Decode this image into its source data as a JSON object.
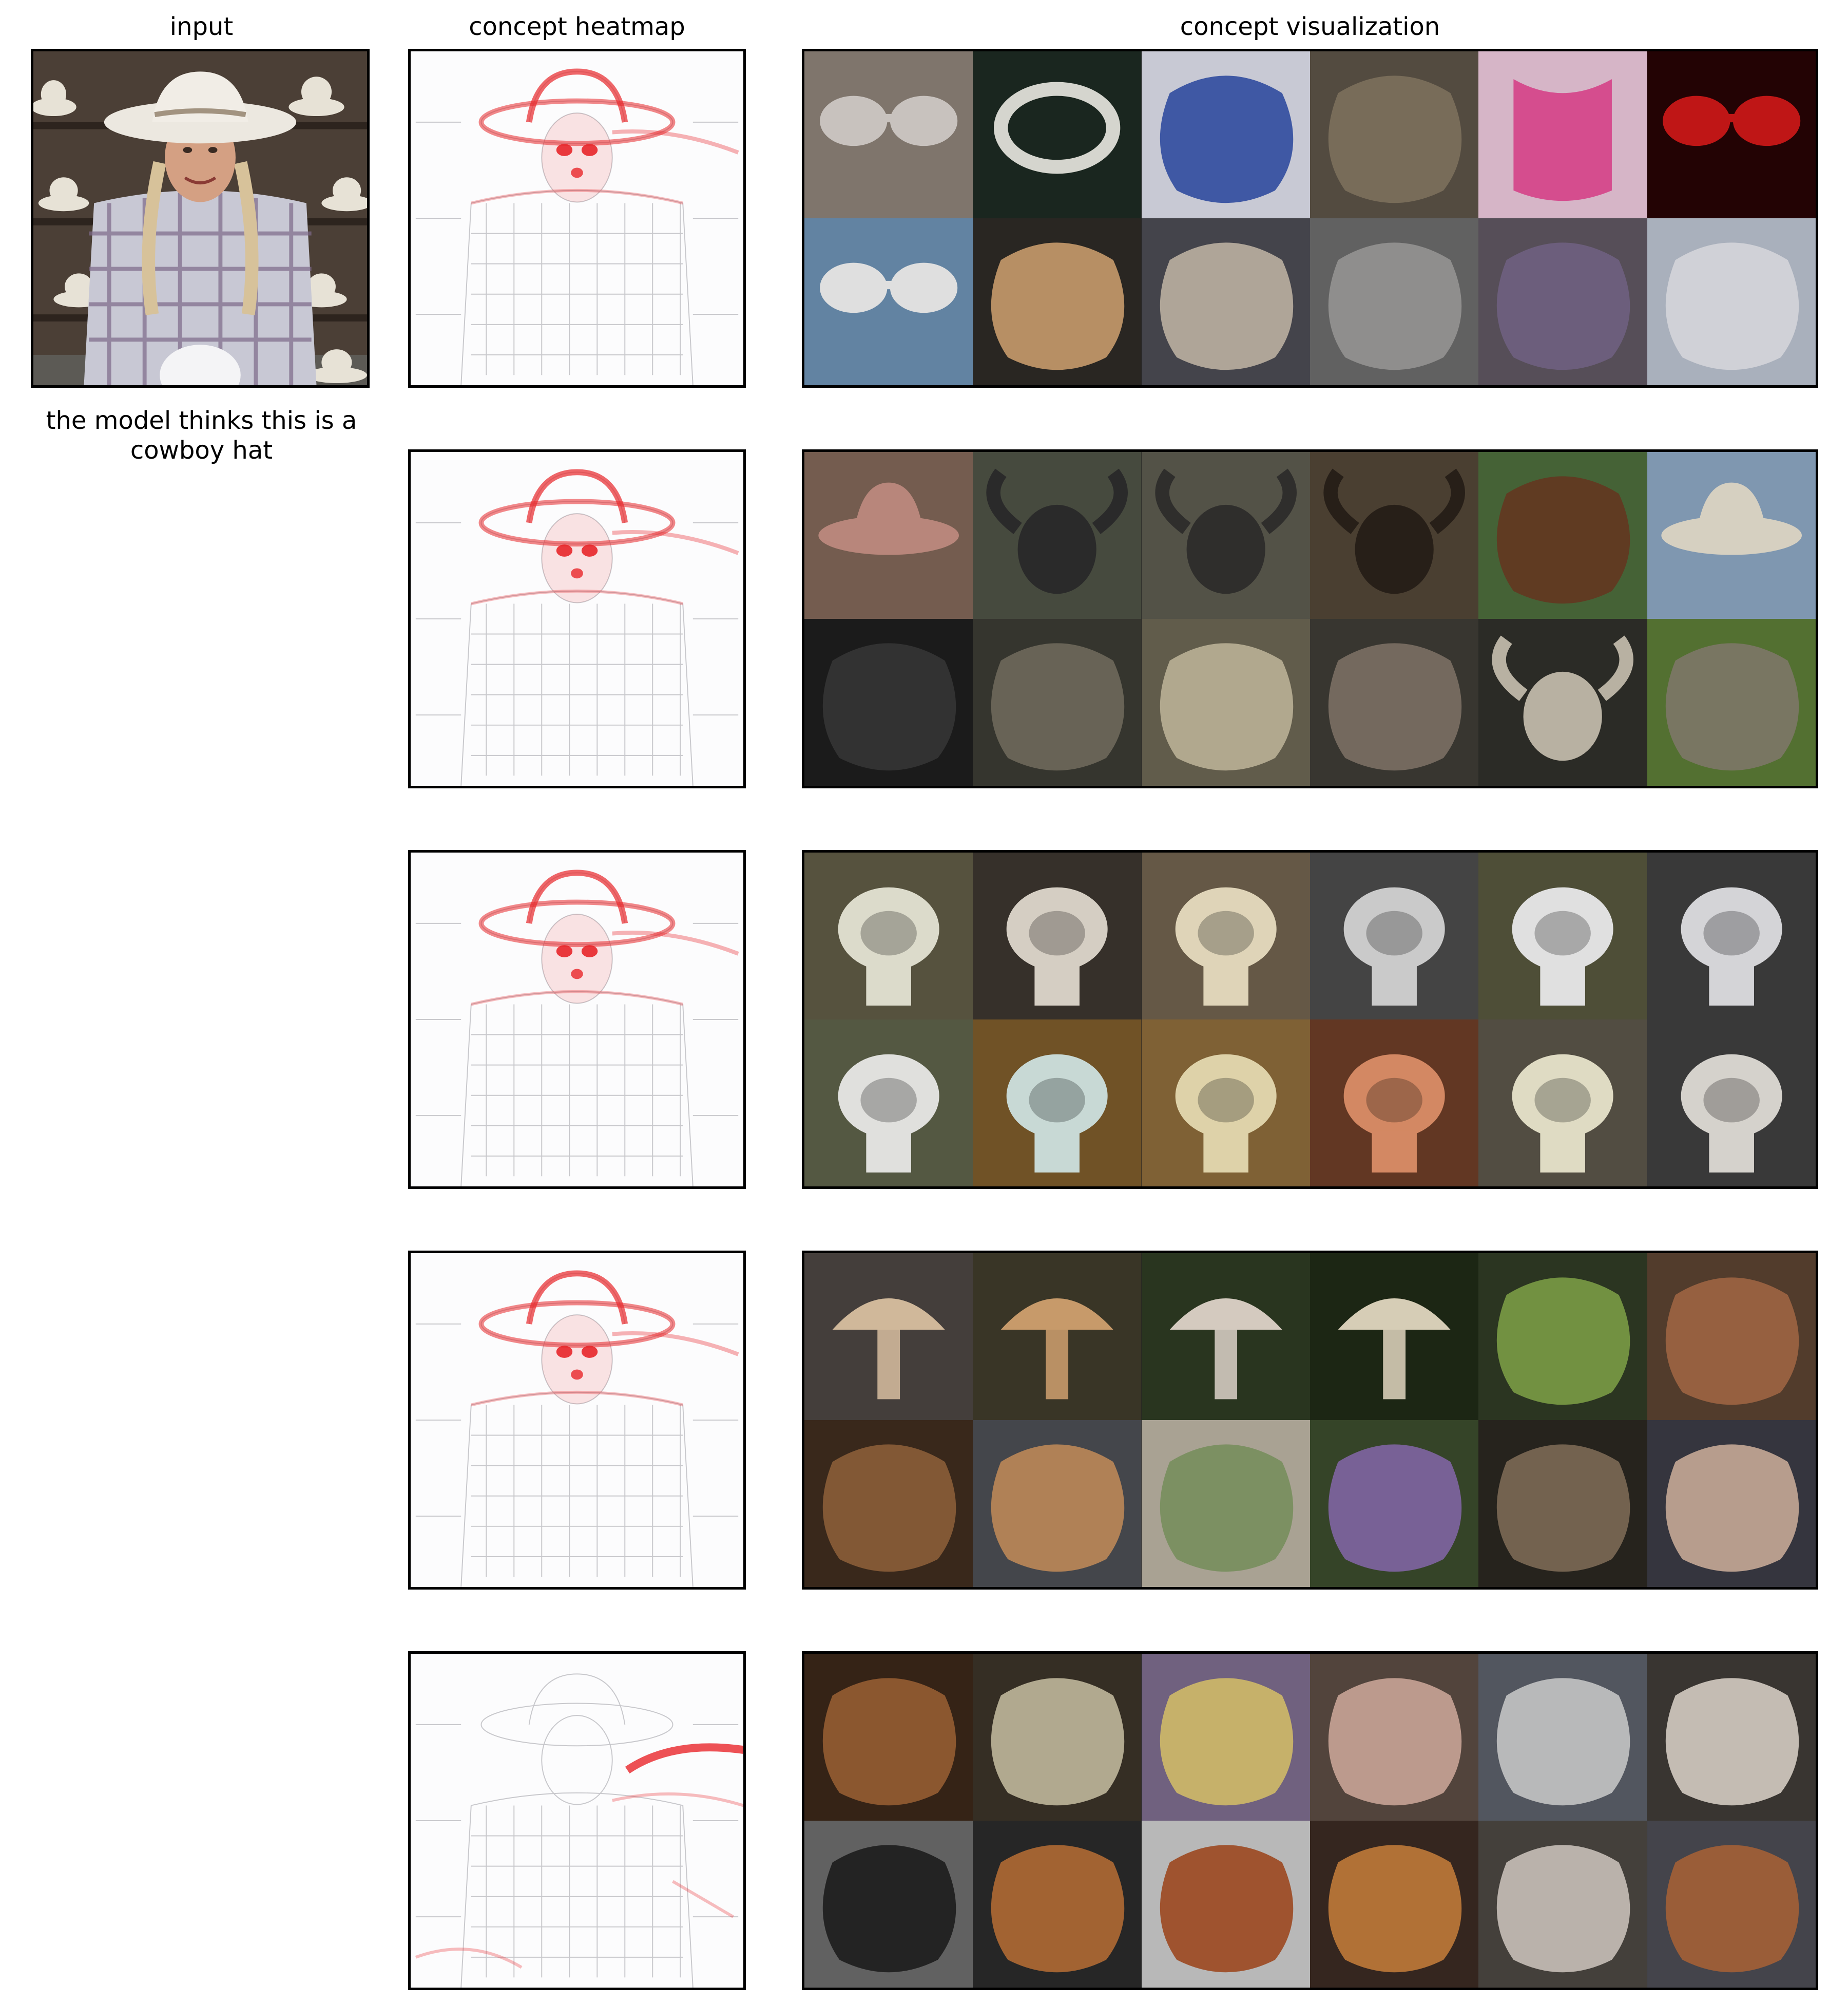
{
  "titles": {
    "input": "input",
    "heatmap": "concept heatmap",
    "visualization": "concept visualization"
  },
  "caption": "the model thinks this is a cowboy hat",
  "rows": [
    {
      "concept_index": 1,
      "heat_focus": "hat-and-face",
      "tiles": [
        {
          "icon": "sunglasses-icon",
          "bg": "#8a7f76",
          "fg": "#d9d3cf",
          "shape": "glasses"
        },
        {
          "icon": "hat-icon",
          "bg": "#1d2a22",
          "fg": "#e8e8e0",
          "shape": "ring"
        },
        {
          "icon": "porcelain-icon",
          "bg": "#d9dbe6",
          "fg": "#2a4aa8",
          "shape": "blob"
        },
        {
          "icon": "rock-icon",
          "bg": "#5b5246",
          "fg": "#8b7c66",
          "shape": "blob"
        },
        {
          "icon": "bib-icon",
          "bg": "#e9c5d8",
          "fg": "#e84090",
          "shape": "bib"
        },
        {
          "icon": "red-goggles-icon",
          "bg": "#260405",
          "fg": "#d01818",
          "shape": "glasses"
        },
        {
          "icon": "child-glasses-icon",
          "bg": "#6b8fb0",
          "fg": "#f2f2f2",
          "shape": "glasses"
        },
        {
          "icon": "pottery-icon",
          "bg": "#2d2a25",
          "fg": "#e3b07a",
          "shape": "blob"
        },
        {
          "icon": "shoes-icon",
          "bg": "#4a4a52",
          "fg": "#d2c6b4",
          "shape": "blob"
        },
        {
          "icon": "bra-icon",
          "bg": "#6a6a6a",
          "fg": "#a5a3a1",
          "shape": "blob"
        },
        {
          "icon": "teapot-icon",
          "bg": "#5e5560",
          "fg": "#7a6b8e",
          "shape": "blob"
        },
        {
          "icon": "plate-icon",
          "bg": "#b8bfcc",
          "fg": "#e9e9ee",
          "shape": "blob"
        }
      ]
    },
    {
      "concept_index": 2,
      "heat_focus": "hat-and-face",
      "tiles": [
        {
          "icon": "sombrero-icon",
          "bg": "#7e6456",
          "fg": "#c89286",
          "shape": "hat"
        },
        {
          "icon": "buffalo-icon",
          "bg": "#4d5144",
          "fg": "#2e2e2e",
          "shape": "horns"
        },
        {
          "icon": "buffalo-icon",
          "bg": "#5b5a4e",
          "fg": "#333230",
          "shape": "horns"
        },
        {
          "icon": "horn-icon",
          "bg": "#514536",
          "fg": "#2b221b",
          "shape": "horns"
        },
        {
          "icon": "cow-icon",
          "bg": "#4b6b3b",
          "fg": "#6e3a22",
          "shape": "blob"
        },
        {
          "icon": "cowboy-hat-icon",
          "bg": "#8aa4bf",
          "fg": "#e9e2d2",
          "shape": "hat"
        },
        {
          "icon": "animal-head-icon",
          "bg": "#1e1e1e",
          "fg": "#3c3c3c",
          "shape": "blob"
        },
        {
          "icon": "elephant-icon",
          "bg": "#3a3a32",
          "fg": "#7b7566",
          "shape": "blob"
        },
        {
          "icon": "elephant-icon",
          "bg": "#6a6452",
          "fg": "#cfc6a8",
          "shape": "blob"
        },
        {
          "icon": "elephant-icon",
          "bg": "#3d3b35",
          "fg": "#8a7c70",
          "shape": "blob"
        },
        {
          "icon": "ram-horn-icon",
          "bg": "#2f2f2a",
          "fg": "#c8c0b0",
          "shape": "horns"
        },
        {
          "icon": "elephant-icon",
          "bg": "#5b7a36",
          "fg": "#8c8174",
          "shape": "blob"
        }
      ]
    },
    {
      "concept_index": 3,
      "heat_focus": "hat-and-face",
      "tiles": [
        {
          "icon": "toilet-icon",
          "bg": "#5e5a44",
          "fg": "#efeedd",
          "shape": "toilet"
        },
        {
          "icon": "toilet-icon",
          "bg": "#3b352e",
          "fg": "#e8e0d4",
          "shape": "toilet"
        },
        {
          "icon": "toilet-icon",
          "bg": "#6e604c",
          "fg": "#f2e7c8",
          "shape": "toilet"
        },
        {
          "icon": "toilet-icon",
          "bg": "#4a4a4a",
          "fg": "#dcdcdc",
          "shape": "toilet"
        },
        {
          "icon": "toilet-icon",
          "bg": "#55553c",
          "fg": "#f4f4f4",
          "shape": "toilet"
        },
        {
          "icon": "toilet-icon",
          "bg": "#3e3e3e",
          "fg": "#e6e6ea",
          "shape": "toilet"
        },
        {
          "icon": "toilet-icon",
          "bg": "#5c6048",
          "fg": "#f3f3f0",
          "shape": "toilet"
        },
        {
          "icon": "toilet-icon",
          "bg": "#7a5a2a",
          "fg": "#d9ece8",
          "shape": "toilet"
        },
        {
          "icon": "toilet-icon",
          "bg": "#8a6a3a",
          "fg": "#f1e4b8",
          "shape": "toilet"
        },
        {
          "icon": "toilet-icon",
          "bg": "#6b3c26",
          "fg": "#e5946c",
          "shape": "toilet"
        },
        {
          "icon": "sink-icon",
          "bg": "#5a5448",
          "fg": "#f2eed4",
          "shape": "toilet"
        },
        {
          "icon": "toilet-icon",
          "bg": "#3e3e3e",
          "fg": "#e8e4de",
          "shape": "toilet"
        }
      ]
    },
    {
      "concept_index": 4,
      "heat_focus": "hat-and-face",
      "tiles": [
        {
          "icon": "mushroom-icon",
          "bg": "#4a4440",
          "fg": "#e2c8a8",
          "shape": "mushroom"
        },
        {
          "icon": "mushroom-icon",
          "bg": "#3e3a2a",
          "fg": "#d8a874",
          "shape": "mushroom"
        },
        {
          "icon": "mushroom-icon",
          "bg": "#2d3a22",
          "fg": "#e6dcd0",
          "shape": "mushroom"
        },
        {
          "icon": "mushroom-icon",
          "bg": "#1f2a16",
          "fg": "#e9dfc6",
          "shape": "mushroom"
        },
        {
          "icon": "artichoke-icon",
          "bg": "#2f3a24",
          "fg": "#8ab04e",
          "shape": "blob"
        },
        {
          "icon": "fig-icon",
          "bg": "#5a4230",
          "fg": "#b0704a",
          "shape": "blob"
        },
        {
          "icon": "fig-icon",
          "bg": "#3e2c1e",
          "fg": "#9c6a40",
          "shape": "blob"
        },
        {
          "icon": "crab-icon",
          "bg": "#4a4c52",
          "fg": "#d49860",
          "shape": "blob"
        },
        {
          "icon": "artichoke-icon",
          "bg": "#b8b0a0",
          "fg": "#7e9a62",
          "shape": "blob"
        },
        {
          "icon": "artichoke-icon",
          "bg": "#3a4a2c",
          "fg": "#9070b8",
          "shape": "blob"
        },
        {
          "icon": "crab-icon",
          "bg": "#2a2620",
          "fg": "#8c7860",
          "shape": "blob"
        },
        {
          "icon": "crab-icon",
          "bg": "#3a3a44",
          "fg": "#e0c0a8",
          "shape": "blob"
        }
      ]
    },
    {
      "concept_index": 5,
      "heat_focus": "right-background",
      "tiles": [
        {
          "icon": "shoe-icon",
          "bg": "#3a2618",
          "fg": "#a86a3a",
          "shape": "blob"
        },
        {
          "icon": "tiles-icon",
          "bg": "#3a3228",
          "fg": "#d8d0b0",
          "shape": "blob"
        },
        {
          "icon": "clogs-icon",
          "bg": "#7a6a8a",
          "fg": "#e8d070",
          "shape": "blob"
        },
        {
          "icon": "shoe-icon",
          "bg": "#5a4a42",
          "fg": "#e0b8a8",
          "shape": "blob"
        },
        {
          "icon": "shoes-icon",
          "bg": "#5a5e68",
          "fg": "#dcdcdc",
          "shape": "blob"
        },
        {
          "icon": "clogs-icon",
          "bg": "#3e3a36",
          "fg": "#f0e8dc",
          "shape": "blob"
        },
        {
          "icon": "shoes-icon",
          "bg": "#6a6a6a",
          "fg": "#1a1a1a",
          "shape": "blob"
        },
        {
          "icon": "shoe-icon",
          "bg": "#2a2a2a",
          "fg": "#c8783a",
          "shape": "blob"
        },
        {
          "icon": "violin-icon",
          "bg": "#c8c8c8",
          "fg": "#a8481a",
          "shape": "blob"
        },
        {
          "icon": "clogs-icon",
          "bg": "#3a2a22",
          "fg": "#d88a40",
          "shape": "blob"
        },
        {
          "icon": "sandal-icon",
          "bg": "#4a4640",
          "fg": "#e0d8d0",
          "shape": "blob"
        },
        {
          "icon": "guitar-icon",
          "bg": "#4a4a52",
          "fg": "#b86a3a",
          "shape": "blob"
        }
      ]
    }
  ]
}
